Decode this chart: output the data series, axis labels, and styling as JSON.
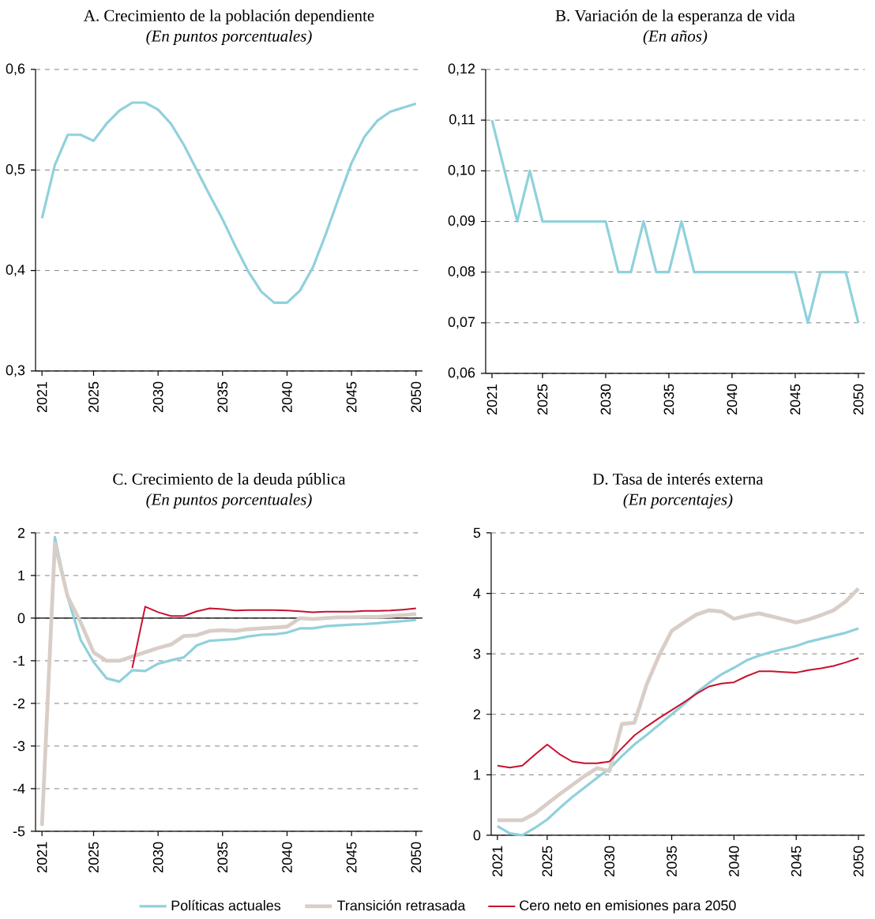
{
  "chart_data": [
    {
      "type": "line",
      "title": "A. Crecimiento de la población dependiente",
      "subtitle": "(En puntos porcentuales)",
      "x": [
        2021,
        2022,
        2023,
        2024,
        2025,
        2026,
        2027,
        2028,
        2029,
        2030,
        2031,
        2032,
        2033,
        2034,
        2035,
        2036,
        2037,
        2038,
        2039,
        2040,
        2041,
        2042,
        2043,
        2044,
        2045,
        2046,
        2047,
        2048,
        2049,
        2050
      ],
      "series": [
        {
          "color": "#8fd1db",
          "values": [
            0.452,
            0.505,
            0.535,
            0.535,
            0.529,
            0.546,
            0.559,
            0.567,
            0.567,
            0.56,
            0.546,
            0.525,
            0.5,
            0.475,
            0.451,
            0.424,
            0.399,
            0.379,
            0.368,
            0.368,
            0.38,
            0.403,
            0.436,
            0.472,
            0.507,
            0.533,
            0.549,
            0.558,
            0.562,
            0.566
          ]
        }
      ],
      "xlim": [
        2020.5,
        2050.5
      ],
      "xticks": [
        2021,
        2025,
        2030,
        2035,
        2040,
        2045,
        2050
      ],
      "ylim": [
        0.3,
        0.6
      ],
      "yticks": [
        {
          "value": 0.3,
          "label": "0,3"
        },
        {
          "value": 0.4,
          "label": "0,4"
        },
        {
          "value": 0.5,
          "label": "0,5"
        },
        {
          "value": 0.6,
          "label": "0,6"
        }
      ],
      "grid": "y",
      "line_style": "solid"
    },
    {
      "type": "line",
      "title": "B. Variación de la esperanza de vida",
      "subtitle": "(En años)",
      "x": [
        2021,
        2022,
        2023,
        2024,
        2025,
        2026,
        2027,
        2028,
        2029,
        2030,
        2031,
        2032,
        2033,
        2034,
        2035,
        2036,
        2037,
        2038,
        2039,
        2040,
        2041,
        2042,
        2043,
        2044,
        2045,
        2046,
        2047,
        2048,
        2049,
        2050
      ],
      "series": [
        {
          "color": "#8fd1db",
          "values": [
            0.11,
            0.1,
            0.09,
            0.1,
            0.09,
            0.09,
            0.09,
            0.09,
            0.09,
            0.09,
            0.08,
            0.08,
            0.09,
            0.08,
            0.08,
            0.09,
            0.08,
            0.08,
            0.08,
            0.08,
            0.08,
            0.08,
            0.08,
            0.08,
            0.08,
            0.07,
            0.08,
            0.08,
            0.08,
            0.07
          ]
        }
      ],
      "xlim": [
        2020.5,
        2050.5
      ],
      "xticks": [
        2021,
        2025,
        2030,
        2035,
        2040,
        2045,
        2050
      ],
      "ylim": [
        0.06,
        0.12
      ],
      "yticks": [
        {
          "value": 0.06,
          "label": "0,06"
        },
        {
          "value": 0.07,
          "label": "0,07"
        },
        {
          "value": 0.08,
          "label": "0,08"
        },
        {
          "value": 0.09,
          "label": "0,09"
        },
        {
          "value": 0.1,
          "label": "0,10"
        },
        {
          "value": 0.11,
          "label": "0,11"
        },
        {
          "value": 0.12,
          "label": "0,12"
        }
      ],
      "grid": "y",
      "line_style": "solid"
    },
    {
      "type": "line",
      "title": "C. Crecimiento de la deuda pública",
      "subtitle": "(En puntos porcentuales)",
      "x": [
        2021,
        2022,
        2023,
        2024,
        2025,
        2026,
        2027,
        2028,
        2029,
        2030,
        2031,
        2032,
        2033,
        2034,
        2035,
        2036,
        2037,
        2038,
        2039,
        2040,
        2041,
        2042,
        2043,
        2044,
        2045,
        2046,
        2047,
        2048,
        2049,
        2050
      ],
      "series": [
        {
          "color": "#8fd1db",
          "values": [
            -4.87,
            1.9,
            0.48,
            -0.51,
            -1.03,
            -1.41,
            -1.49,
            -1.22,
            -1.24,
            -1.07,
            -0.99,
            -0.92,
            -0.64,
            -0.53,
            -0.51,
            -0.49,
            -0.43,
            -0.39,
            -0.38,
            -0.34,
            -0.24,
            -0.24,
            -0.19,
            -0.17,
            -0.15,
            -0.14,
            -0.12,
            -0.09,
            -0.07,
            -0.04
          ]
        },
        {
          "color": "#d9cec7",
          "values": [
            -4.85,
            1.75,
            0.5,
            -0.1,
            -0.8,
            -1.0,
            -1.0,
            -0.9,
            -0.8,
            -0.7,
            -0.62,
            -0.42,
            -0.4,
            -0.3,
            -0.28,
            -0.3,
            -0.26,
            -0.24,
            -0.22,
            -0.2,
            0.0,
            -0.02,
            0.0,
            0.02,
            0.02,
            0.03,
            0.03,
            0.05,
            0.07,
            0.1
          ]
        },
        {
          "color": "#c8102e",
          "values": [
            null,
            null,
            null,
            null,
            null,
            null,
            null,
            -1.17,
            0.27,
            0.14,
            0.05,
            0.05,
            0.16,
            0.23,
            0.21,
            0.18,
            0.19,
            0.19,
            0.19,
            0.18,
            0.16,
            0.14,
            0.15,
            0.15,
            0.15,
            0.17,
            0.17,
            0.18,
            0.2,
            0.23
          ]
        }
      ],
      "xlim": [
        2020.5,
        2050.5
      ],
      "xticks": [
        2021,
        2025,
        2030,
        2035,
        2040,
        2045,
        2050
      ],
      "ylim": [
        -5,
        2
      ],
      "yticks": [
        -5,
        -4,
        -3,
        -2,
        -1,
        0,
        1,
        2
      ],
      "ref_lines": [
        {
          "axis": "y",
          "value": 0,
          "color": "#000000"
        }
      ],
      "grid": "y",
      "line_style": "solid"
    },
    {
      "type": "line",
      "title": "D. Tasa de interés externa",
      "subtitle": "(En porcentajes)",
      "x": [
        2021,
        2022,
        2023,
        2024,
        2025,
        2026,
        2027,
        2028,
        2029,
        2030,
        2031,
        2032,
        2033,
        2034,
        2035,
        2036,
        2037,
        2038,
        2039,
        2040,
        2041,
        2042,
        2043,
        2044,
        2045,
        2046,
        2047,
        2048,
        2049,
        2050
      ],
      "series": [
        {
          "name": "Políticas actuales",
          "color": "#8fd1db",
          "values": [
            0.15,
            0.03,
            0.0,
            0.12,
            0.26,
            0.45,
            0.63,
            0.79,
            0.95,
            1.1,
            1.31,
            1.5,
            1.66,
            1.83,
            2.0,
            2.17,
            2.36,
            2.52,
            2.66,
            2.77,
            2.89,
            2.97,
            3.03,
            3.08,
            3.13,
            3.2,
            3.25,
            3.3,
            3.35,
            3.42
          ]
        },
        {
          "name": "Transición retrasada",
          "color": "#d9cec7",
          "values": [
            0.25,
            0.25,
            0.25,
            0.36,
            0.52,
            0.68,
            0.83,
            0.98,
            1.11,
            1.06,
            1.84,
            1.86,
            2.5,
            2.98,
            3.38,
            3.52,
            3.65,
            3.72,
            3.7,
            3.58,
            3.63,
            3.67,
            3.62,
            3.57,
            3.52,
            3.57,
            3.64,
            3.72,
            3.87,
            4.08
          ]
        },
        {
          "name": "Cero neto en emisiones para 2050",
          "color": "#c8102e",
          "values": [
            1.15,
            1.12,
            1.15,
            1.33,
            1.5,
            1.34,
            1.22,
            1.19,
            1.19,
            1.22,
            1.44,
            1.65,
            1.8,
            1.94,
            2.07,
            2.2,
            2.34,
            2.46,
            2.51,
            2.53,
            2.63,
            2.71,
            2.71,
            2.7,
            2.69,
            2.73,
            2.76,
            2.8,
            2.86,
            2.93
          ]
        }
      ],
      "xlim": [
        2020.5,
        2050.5
      ],
      "xticks": [
        2021,
        2025,
        2030,
        2035,
        2040,
        2045,
        2050
      ],
      "ylim": [
        0,
        5
      ],
      "yticks": [
        0,
        1,
        2,
        3,
        4,
        5
      ],
      "grid": "y",
      "legend": "bottom",
      "line_style": "solid"
    }
  ]
}
